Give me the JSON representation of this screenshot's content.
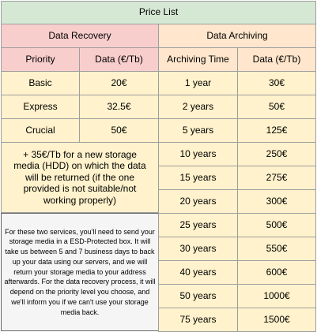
{
  "title": "Price List",
  "recovery": {
    "header": "Data Recovery",
    "col_priority": "Priority",
    "col_price": "Data (€/Tb)",
    "rows": [
      {
        "priority": "Basic",
        "price": "20€"
      },
      {
        "priority": "Express",
        "price": "32.5€"
      },
      {
        "priority": "Crucial",
        "price": "50€"
      }
    ],
    "media_note": "+ 35€/Tb for a new storage media (HDD) on which the data will be returned (if the one provided is not suitable/not working properly)",
    "info_note": "For these two services, you'll need to send your storage media in a ESD-Protected box. It will take us between 5 and 7 business days to back up your data using our servers, and we will return your storage media to your address afterwards. For the data recovery process, it will depend on the priority level you choose, and we'll inform you if we can't use your storage media back."
  },
  "archiving": {
    "header": "Data Archiving",
    "col_time": "Archiving Time",
    "col_price": "Data (€/Tb)",
    "rows": [
      {
        "time": "1 year",
        "price": "30€"
      },
      {
        "time": "2 years",
        "price": "50€"
      },
      {
        "time": "5 years",
        "price": "125€"
      },
      {
        "time": "10 years",
        "price": "250€"
      },
      {
        "time": "15 years",
        "price": "275€"
      },
      {
        "time": "20 years",
        "price": "300€"
      },
      {
        "time": "25 years",
        "price": "500€"
      },
      {
        "time": "30 years",
        "price": "550€"
      },
      {
        "time": "40 years",
        "price": "600€"
      },
      {
        "time": "50 years",
        "price": "1000€"
      },
      {
        "time": "75 years",
        "price": "1500€"
      }
    ]
  }
}
